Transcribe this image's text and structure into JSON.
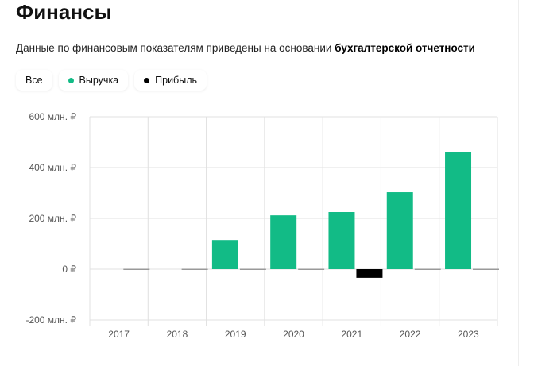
{
  "title": "Финансы",
  "subtitle": {
    "text": "Данные по финансовым показателям приведены на основании ",
    "link": "бухгалтерской отчетности"
  },
  "filters": [
    {
      "label": "Все"
    },
    {
      "label": "Выручка",
      "color": "#12bb86"
    },
    {
      "label": "Прибыль",
      "color": "#000000"
    }
  ],
  "chart_data": {
    "type": "bar",
    "categories": [
      "2017",
      "2018",
      "2019",
      "2020",
      "2021",
      "2022",
      "2023"
    ],
    "series": [
      {
        "name": "Выручка",
        "color": "#12bb86",
        "values": [
          0,
          0,
          115,
          212,
          225,
          303,
          462
        ]
      },
      {
        "name": "Прибыль",
        "color": "#000000",
        "values": [
          0,
          0,
          0,
          0,
          -34,
          -4,
          2
        ]
      }
    ],
    "ylim": [
      -200,
      600
    ],
    "yticks": [
      600,
      400,
      200,
      0,
      -200
    ],
    "ytick_labels": [
      "600 млн. ₽",
      "400 млн. ₽",
      "200 млн. ₽",
      "0 ₽",
      "-200 млн. ₽"
    ],
    "grid": true,
    "legend": "top-left"
  }
}
